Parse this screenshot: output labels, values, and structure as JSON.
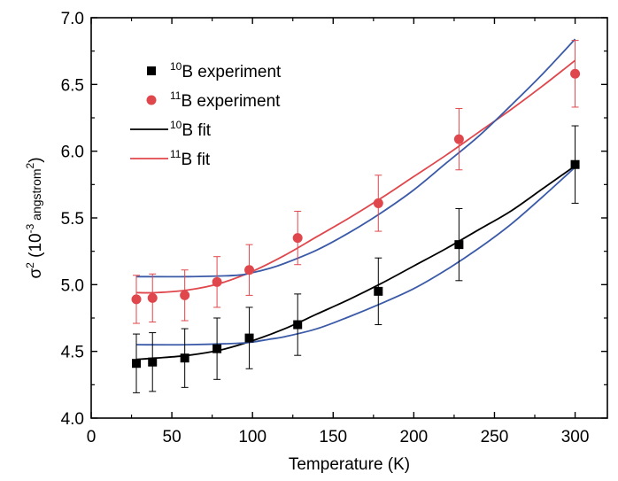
{
  "chart_data": {
    "type": "scatter",
    "xlabel": "Temperature (K)",
    "ylabel": {
      "base": "σ",
      "exp": "2",
      "open": " (10",
      "exp2": "-3",
      "unit": " angstrom",
      "unit_exp": "2",
      "close": ")"
    },
    "xlim": [
      0,
      320
    ],
    "ylim": [
      4.0,
      7.0
    ],
    "xticks": [
      0,
      50,
      100,
      150,
      200,
      250,
      300
    ],
    "yticks": [
      4.0,
      4.5,
      5.0,
      5.5,
      6.0,
      6.5,
      7.0
    ],
    "xtick_labels": [
      "0",
      "50",
      "100",
      "150",
      "200",
      "250",
      "300"
    ],
    "ytick_labels": [
      "4.0",
      "4.5",
      "5.0",
      "5.5",
      "6.0",
      "6.5",
      "7.0"
    ],
    "grid": false,
    "legend_position": "top-left",
    "series": [
      {
        "name": "10B experiment",
        "label_sup": "10",
        "label_text": "B experiment",
        "kind": "points",
        "marker": "square",
        "color": "#000000",
        "x": [
          28,
          38,
          58,
          78,
          98,
          128,
          178,
          228,
          300
        ],
        "y": [
          4.41,
          4.42,
          4.45,
          4.52,
          4.6,
          4.7,
          4.95,
          5.3,
          5.9
        ],
        "err": [
          0.22,
          0.22,
          0.22,
          0.23,
          0.23,
          0.23,
          0.25,
          0.27,
          0.29
        ]
      },
      {
        "name": "11B experiment",
        "label_sup": "11",
        "label_text": "B experiment",
        "kind": "points",
        "marker": "circle",
        "color": "#e0474c",
        "x": [
          28,
          38,
          58,
          78,
          98,
          128,
          178,
          228,
          300
        ],
        "y": [
          4.89,
          4.9,
          4.92,
          5.02,
          5.11,
          5.35,
          5.61,
          6.09,
          6.58
        ],
        "err": [
          0.18,
          0.18,
          0.19,
          0.19,
          0.19,
          0.2,
          0.21,
          0.23,
          0.25
        ]
      },
      {
        "name": "10B fit",
        "label_sup": "10",
        "label_text": "B fit",
        "kind": "line",
        "color": "#000000",
        "x": [
          28,
          40,
          60,
          80,
          100,
          120,
          140,
          160,
          180,
          200,
          220,
          240,
          260,
          280,
          300
        ],
        "y": [
          4.44,
          4.45,
          4.47,
          4.51,
          4.58,
          4.67,
          4.78,
          4.89,
          5.01,
          5.14,
          5.27,
          5.41,
          5.55,
          5.72,
          5.89
        ]
      },
      {
        "name": "11B fit",
        "label_sup": "11",
        "label_text": "B fit",
        "kind": "line",
        "color": "#e0474c",
        "x": [
          28,
          40,
          60,
          80,
          100,
          120,
          140,
          160,
          180,
          200,
          220,
          240,
          260,
          280,
          300
        ],
        "y": [
          4.94,
          4.94,
          4.96,
          5.01,
          5.1,
          5.22,
          5.36,
          5.5,
          5.65,
          5.81,
          5.97,
          6.14,
          6.31,
          6.49,
          6.68
        ]
      },
      {
        "kind": "line",
        "color": "#3a5aa8",
        "x": [
          28,
          60,
          90,
          100,
          110,
          120,
          140,
          160,
          180,
          200,
          220,
          240,
          260,
          280,
          300
        ],
        "y": [
          4.55,
          4.55,
          4.56,
          4.57,
          4.59,
          4.61,
          4.67,
          4.76,
          4.86,
          4.97,
          5.11,
          5.27,
          5.45,
          5.66,
          5.88
        ]
      },
      {
        "kind": "line",
        "color": "#3a5aa8",
        "x": [
          28,
          60,
          90,
          100,
          110,
          120,
          140,
          160,
          180,
          200,
          220,
          240,
          260,
          280,
          300
        ],
        "y": [
          5.06,
          5.06,
          5.07,
          5.09,
          5.12,
          5.16,
          5.26,
          5.39,
          5.54,
          5.71,
          5.91,
          6.11,
          6.34,
          6.58,
          6.84
        ]
      }
    ]
  }
}
